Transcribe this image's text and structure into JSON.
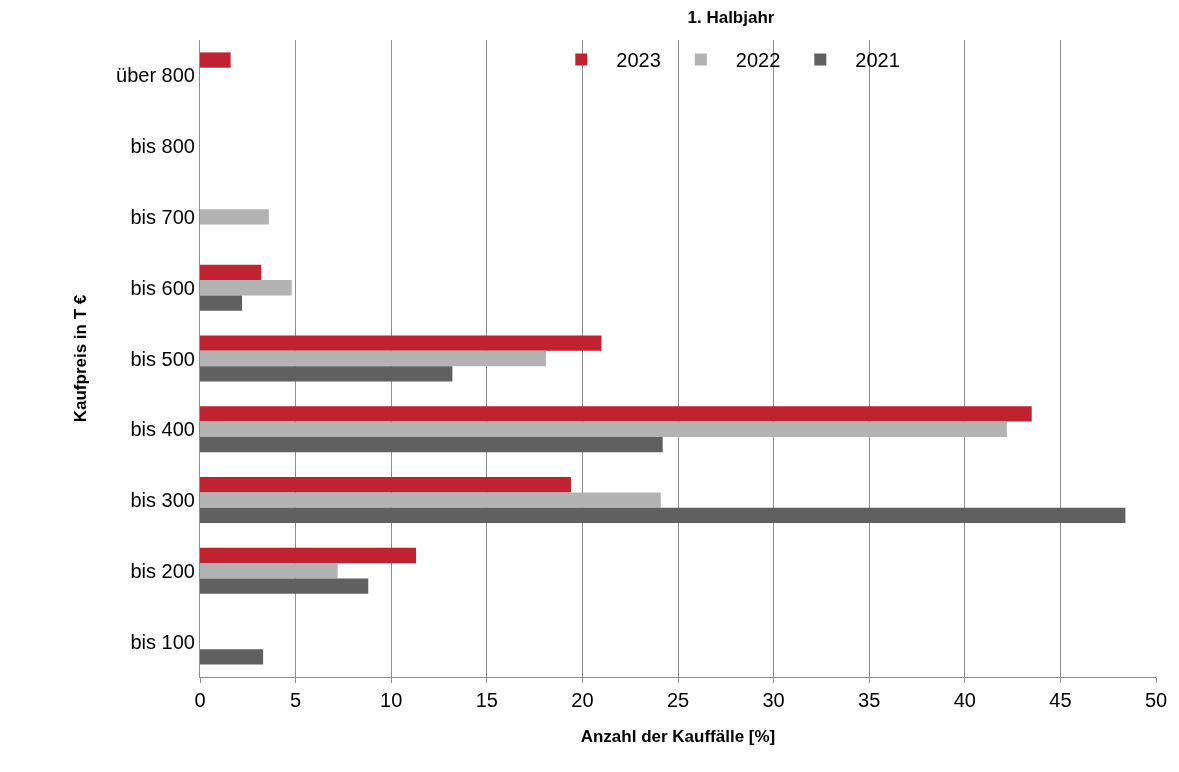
{
  "chart_data": {
    "type": "bar",
    "orientation": "horizontal",
    "title": "1. Halbjahr",
    "xlabel": "Anzahl der Kauffälle [%]",
    "ylabel": "Kaufpreis in T €",
    "categories": [
      "über 800",
      "bis 800",
      "bis 700",
      "bis 600",
      "bis 500",
      "bis 400",
      "bis 300",
      "bis 200",
      "bis 100"
    ],
    "series": [
      {
        "name": "2023",
        "color": "#c0232f",
        "values": [
          1.6,
          null,
          null,
          3.2,
          21.0,
          43.5,
          19.4,
          11.3,
          null
        ]
      },
      {
        "name": "2022",
        "color": "#b3b3b3",
        "values": [
          null,
          null,
          3.6,
          4.8,
          18.1,
          42.2,
          24.1,
          7.2,
          null
        ]
      },
      {
        "name": "2021",
        "color": "#606060",
        "values": [
          null,
          null,
          null,
          2.2,
          13.2,
          24.2,
          48.4,
          8.8,
          3.3
        ]
      }
    ],
    "xlim": [
      0,
      50
    ],
    "xticks": [
      0,
      5,
      10,
      15,
      20,
      25,
      30,
      35,
      40,
      45,
      50
    ],
    "grid": "x",
    "legend": "top"
  }
}
